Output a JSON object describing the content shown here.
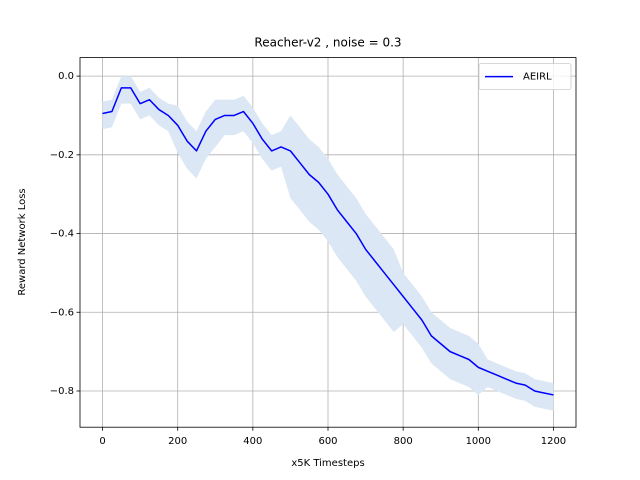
{
  "chart_data": {
    "type": "line",
    "title": "Reacher-v2 , noise = 0.3",
    "xlabel": "x5K Timesteps",
    "ylabel": "Reward Network Loss",
    "x": [
      0,
      25,
      50,
      75,
      100,
      125,
      150,
      175,
      200,
      225,
      250,
      275,
      300,
      325,
      350,
      375,
      400,
      425,
      450,
      475,
      500,
      525,
      550,
      575,
      600,
      625,
      650,
      675,
      700,
      725,
      750,
      775,
      800,
      825,
      850,
      875,
      900,
      925,
      950,
      975,
      1000,
      1025,
      1050,
      1075,
      1100,
      1125,
      1150,
      1175,
      1200
    ],
    "series": [
      {
        "name": "AEIRL",
        "color": "#0000ff",
        "band_color": "#dbe7f4",
        "values": [
          -0.095,
          -0.09,
          -0.03,
          -0.03,
          -0.07,
          -0.06,
          -0.085,
          -0.1,
          -0.125,
          -0.165,
          -0.19,
          -0.14,
          -0.11,
          -0.1,
          -0.1,
          -0.09,
          -0.12,
          -0.16,
          -0.19,
          -0.18,
          -0.19,
          -0.22,
          -0.25,
          -0.27,
          -0.3,
          -0.34,
          -0.37,
          -0.4,
          -0.44,
          -0.47,
          -0.5,
          -0.53,
          -0.56,
          -0.59,
          -0.62,
          -0.66,
          -0.68,
          -0.7,
          -0.71,
          -0.72,
          -0.74,
          -0.75,
          -0.76,
          -0.77,
          -0.78,
          -0.785,
          -0.8,
          -0.805,
          -0.81
        ],
        "upper": [
          -0.065,
          -0.06,
          0.0,
          0.0,
          -0.04,
          -0.03,
          -0.055,
          -0.07,
          -0.075,
          -0.115,
          -0.14,
          -0.09,
          -0.06,
          -0.06,
          -0.06,
          -0.05,
          -0.08,
          -0.12,
          -0.15,
          -0.14,
          -0.1,
          -0.13,
          -0.16,
          -0.18,
          -0.21,
          -0.25,
          -0.28,
          -0.31,
          -0.35,
          -0.38,
          -0.41,
          -0.44,
          -0.5,
          -0.53,
          -0.56,
          -0.6,
          -0.62,
          -0.64,
          -0.65,
          -0.66,
          -0.68,
          -0.72,
          -0.73,
          -0.74,
          -0.75,
          -0.755,
          -0.77,
          -0.775,
          -0.78
        ],
        "lower": [
          -0.135,
          -0.13,
          -0.07,
          -0.07,
          -0.11,
          -0.1,
          -0.125,
          -0.14,
          -0.195,
          -0.235,
          -0.26,
          -0.21,
          -0.18,
          -0.15,
          -0.15,
          -0.14,
          -0.17,
          -0.21,
          -0.24,
          -0.23,
          -0.31,
          -0.34,
          -0.37,
          -0.39,
          -0.42,
          -0.46,
          -0.49,
          -0.52,
          -0.56,
          -0.59,
          -0.62,
          -0.65,
          -0.63,
          -0.66,
          -0.69,
          -0.73,
          -0.75,
          -0.77,
          -0.78,
          -0.79,
          -0.81,
          -0.79,
          -0.8,
          -0.81,
          -0.82,
          -0.825,
          -0.84,
          -0.845,
          -0.85
        ]
      }
    ],
    "xlim": [
      -60,
      1260
    ],
    "xticks": [
      0,
      200,
      400,
      600,
      800,
      1000,
      1200
    ],
    "ylim": [
      -0.892,
      0.047
    ],
    "yticks": [
      {
        "value": -0.8,
        "label": "−0.8"
      },
      {
        "value": -0.6,
        "label": "−0.6"
      },
      {
        "value": -0.4,
        "label": "−0.4"
      },
      {
        "value": -0.2,
        "label": "−0.2"
      },
      {
        "value": 0.0,
        "label": "0.0"
      }
    ],
    "grid": true,
    "legend": "upper right"
  }
}
